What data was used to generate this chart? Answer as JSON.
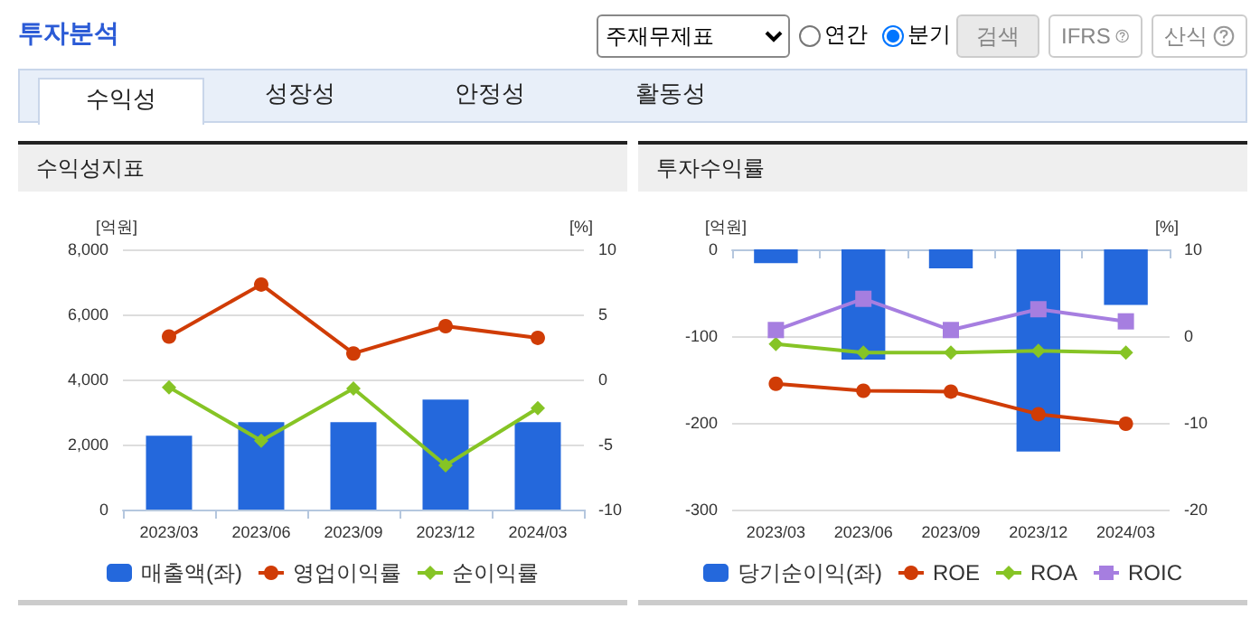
{
  "chart_data": [
    {
      "type": "other",
      "title": "투자분석",
      "annotations": [
        "주재무제표",
        "연간",
        "분기",
        "검색",
        "IFRS",
        "산식",
        "수익성",
        "성장성",
        "안정성",
        "활동성"
      ]
    },
    {
      "type": "bar",
      "title": "수익성지표",
      "categories": [
        "2023/03",
        "2023/06",
        "2023/09",
        "2023/12",
        "2024/03"
      ],
      "ylabel": "[억원]",
      "y2label": "[%]",
      "ylim": [
        0,
        8000
      ],
      "yticks": [
        {
          "value": 0,
          "label": "0"
        },
        {
          "value": 2000,
          "label": "2,000"
        },
        {
          "value": 4000,
          "label": "4,000"
        },
        {
          "value": 6000,
          "label": "6,000"
        },
        {
          "value": 8000,
          "label": "8,000"
        }
      ],
      "y2lim": [
        -10,
        10
      ],
      "y2ticks": [
        -10,
        -5,
        0,
        5,
        10
      ],
      "grid": "y",
      "legend": "bottom",
      "series": [
        {
          "name": "매출액(좌)",
          "type": "bar",
          "color": "#2468dc",
          "values": [
            2270,
            2690,
            2690,
            3380,
            2690
          ]
        },
        {
          "name": "영업이익률",
          "type": "line",
          "axis": "y2",
          "marker": "circle",
          "color": "#d03c06",
          "values": [
            3.3,
            7.3,
            2.0,
            4.1,
            3.2
          ]
        },
        {
          "name": "순이익률",
          "type": "line",
          "axis": "y2",
          "marker": "diamond",
          "color": "#86c425",
          "values": [
            -0.6,
            -4.7,
            -0.7,
            -6.6,
            -2.2
          ]
        }
      ]
    },
    {
      "type": "bar",
      "title": "투자수익률",
      "categories": [
        "2023/03",
        "2023/06",
        "2023/09",
        "2023/12",
        "2024/03"
      ],
      "ylabel": "[억원]",
      "y2label": "[%]",
      "ylim": [
        -300,
        0
      ],
      "yticks": [
        -300,
        -200,
        -100,
        0
      ],
      "y2lim": [
        -20,
        10
      ],
      "y2ticks": [
        -20,
        -10,
        0,
        10
      ],
      "grid": "y",
      "legend": "bottom",
      "series": [
        {
          "name": "당기순이익(좌)",
          "type": "bar",
          "color": "#2468dc",
          "values": [
            -16,
            -127,
            -22,
            -233,
            -64
          ]
        },
        {
          "name": "ROE",
          "type": "line",
          "axis": "y2",
          "marker": "circle",
          "color": "#d03c06",
          "values": [
            -5.5,
            -6.3,
            -6.4,
            -9.0,
            -10.1
          ]
        },
        {
          "name": "ROA",
          "type": "line",
          "axis": "y2",
          "marker": "diamond",
          "color": "#86c425",
          "values": [
            -0.9,
            -1.9,
            -1.9,
            -1.7,
            -1.9
          ]
        },
        {
          "name": "ROIC",
          "type": "line",
          "axis": "y2",
          "marker": "square",
          "color": "#a67ee0",
          "values": [
            0.7,
            4.3,
            0.7,
            3.1,
            1.7
          ]
        }
      ]
    }
  ]
}
